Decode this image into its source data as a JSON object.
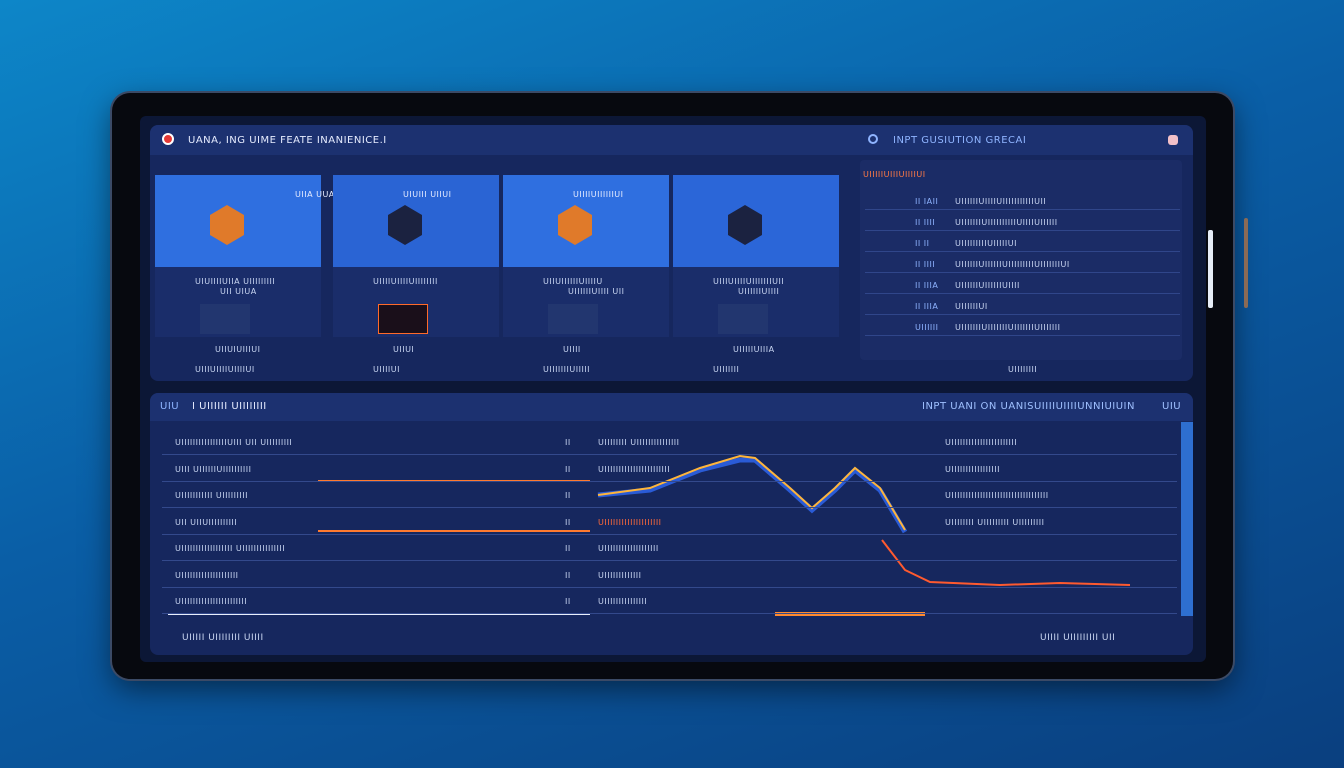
{
  "header": {
    "title": "UANA, ING UIME FEATE INANIENICE.I",
    "right_title": "INPT GUSIUTION GRECAI"
  },
  "cards": [
    {
      "top": "UIIA UUA UI",
      "caption": "UIUIIIIUIIA UIIIIIIIII",
      "sub": "UII UIUA",
      "footer": "UIIUIUIIIUI",
      "bottom": "UIIIUIIIIUIIIIUI"
    },
    {
      "top": "UIUIII UIIUI",
      "caption": "UIIIIUIIIIUIIIIIIII",
      "sub": "",
      "footer": "UIIUI",
      "bottom": "UIIIIUI"
    },
    {
      "top": "UIIIIUIIIIIIUI",
      "caption": "UIIUIIIIIIUIIIIU",
      "sub": "UIIIIIIUIIII UII",
      "footer": "UIIII",
      "bottom": "UIIIIIIIUIIIII"
    },
    {
      "top": "",
      "caption": "UIIIUIIIIUIIIIIIIUII",
      "sub": "UIIIIIIUIIII",
      "footer": "UIIIIIUIIIA",
      "bottom": "UIIIIIII"
    }
  ],
  "side_panel": {
    "title": "UIIIIIUIIIUIIIIUI",
    "rows": [
      {
        "key": "II IAII",
        "text": "UIIIIIIUIIIIUIIIIIIIIIIIUII"
      },
      {
        "key": "II IIII",
        "text": "UIIIIIIIUIIIIIIIIIIUIIIIUIIIIII"
      },
      {
        "key": "II II",
        "text": "UIIIIIIIIIUIIIIIUI"
      },
      {
        "key": "II IIII",
        "text": "UIIIIIIUIIIIIIUIIIIIIIIIUIIIIIIIUI"
      },
      {
        "key": "II IIIA",
        "text": "UIIIIIIUIIIIIIUIIII"
      },
      {
        "key": "II IIIA",
        "text": "UIIIIIIUI"
      },
      {
        "key": "UIIIIII",
        "text": "UIIIIIIIUIIIIIIIUIIIIIIIUIIIIIII"
      }
    ],
    "footer": "UIIIIIIII"
  },
  "bottom": {
    "title": "I UIIIIII UIIIIIIII",
    "badge": "UIU",
    "right_title": "INPT UANI ON UANISUIIIIUIIIIUNNIUIUIN",
    "right_badge": "UIU",
    "rows": [
      {
        "label": "UIIIIIIIIIIIIIIIIUIII  UII UIIIIIIIII",
        "num": "II",
        "mid": "UIIIIIIII  UIIIIIIIIIIIIIII",
        "right": "UIIIIIIIIIIIIIIIIIIIIIII"
      },
      {
        "label": "UIII UIIIIIIUIIIIIIIIII",
        "num": "II",
        "mid": "UIIIIIIIIIIIIIIIIIIIIIII",
        "right": "UIIIIIIIIIIIIIIIII"
      },
      {
        "label": "UIIIIIIIIIII  UIIIIIIIII",
        "num": "II",
        "mid": "",
        "right": "UIIIIIIIIIIIIIIIIIIIIIIIIIIIIIIIIII"
      },
      {
        "label": "UII UIIUIIIIIIIIII",
        "num": "II",
        "mid": "UIIIIIIIIIIIIIIIIIIII",
        "right": "UIIIIIIII UIIIIIIIII UIIIIIIIII"
      },
      {
        "label": "UIIIIIIIIIIIIIIIIII  UIIIIIIIIIIIIIII",
        "num": "II",
        "mid": "UIIIIIIIIIIIIIIIIIII",
        "right": ""
      },
      {
        "label": "UIIIIIIIIIIIIIIIIIIII",
        "num": "II",
        "mid": "UIIIIIIIIIIIII",
        "right": ""
      },
      {
        "label": "UIIIIIIIIIIIIIIIIIIIIIII",
        "num": "II",
        "mid": "UIIIIIIIIIIIIIII",
        "right": ""
      }
    ],
    "footer_left": "UIIIII UIIIIIIII UIIII",
    "footer_right": "UIIII  UIIIIIIIII UII"
  }
}
